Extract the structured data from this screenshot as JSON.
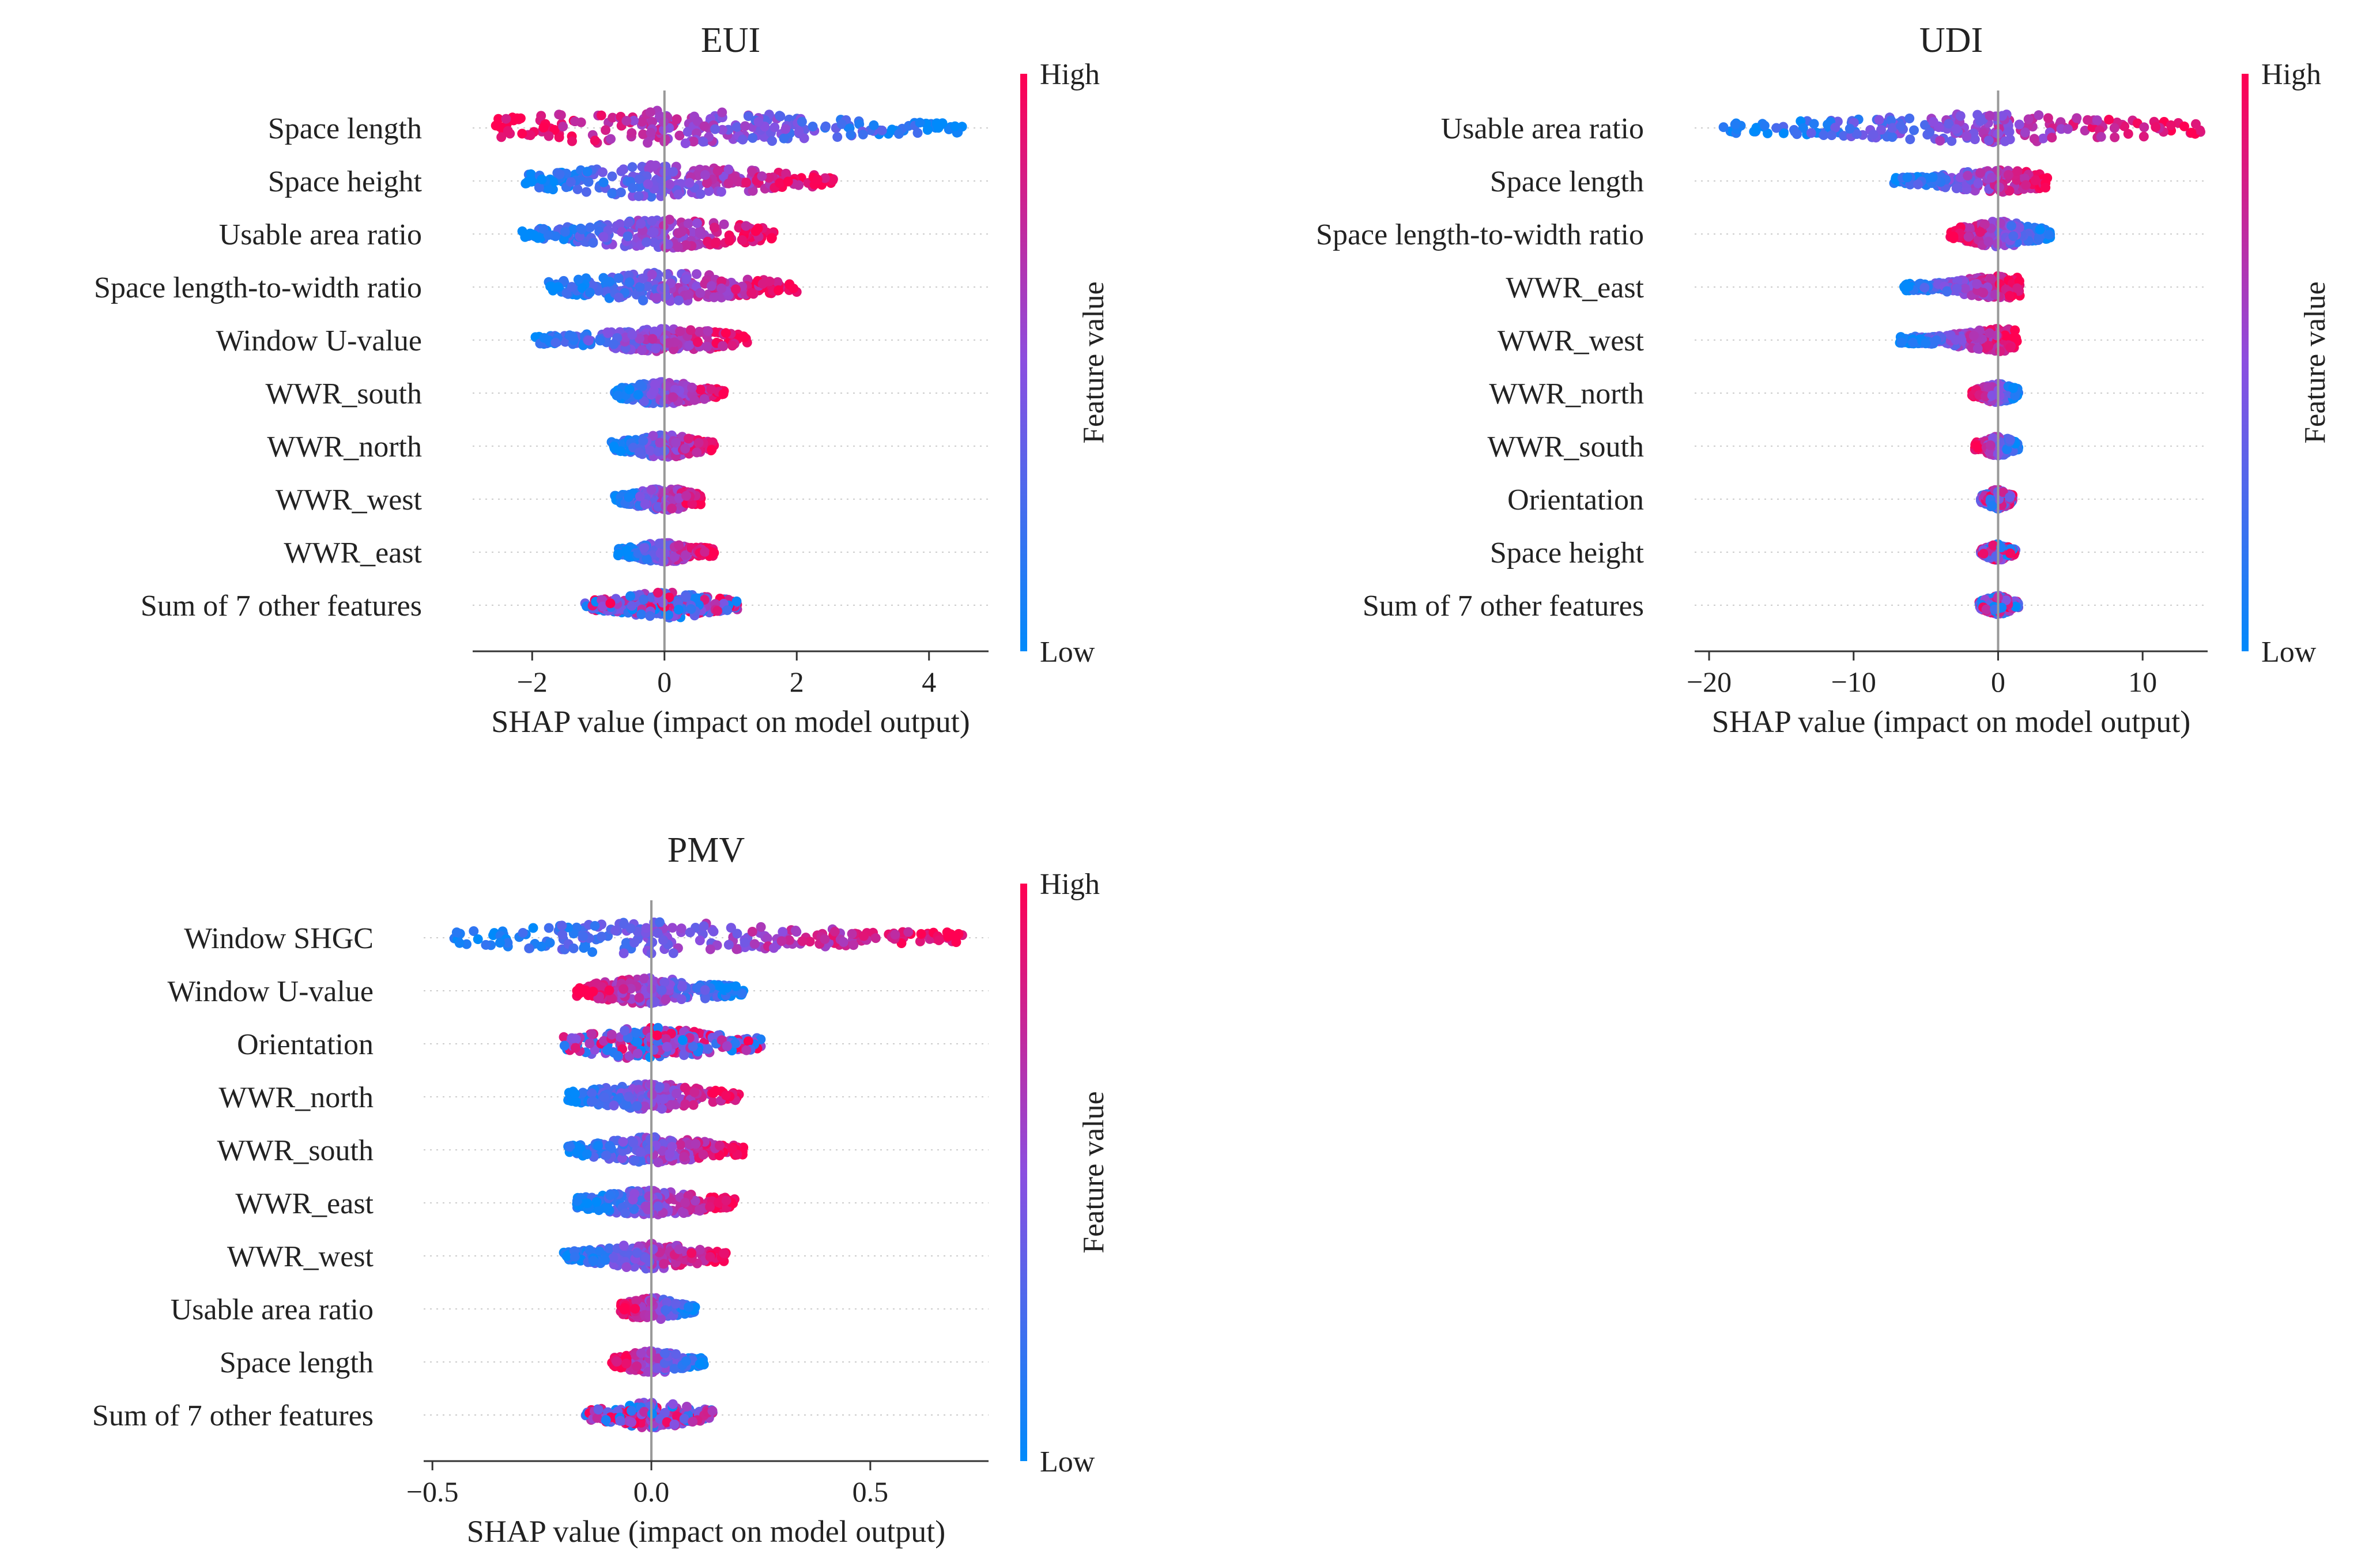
{
  "chart_data": [
    {
      "type": "scatter",
      "subtype": "shap-beeswarm",
      "title": "EUI",
      "xlabel": "SHAP value (impact on model output)",
      "ylabel": "",
      "xlim": [
        -2.9,
        4.9
      ],
      "xticks": [
        -2,
        0,
        2,
        4
      ],
      "xtick_labels": [
        "−2",
        "0",
        "2",
        "4"
      ],
      "colorbar": {
        "label": "Feature value",
        "high": "High",
        "low": "Low"
      },
      "features": [
        {
          "name": "Space length",
          "min": -2.55,
          "max": 4.5,
          "low_side": "right",
          "spread": 1.1
        },
        {
          "name": "Space height",
          "min": -2.1,
          "max": 2.55,
          "low_side": "left",
          "spread": 1.0
        },
        {
          "name": "Usable area ratio",
          "min": -2.15,
          "max": 1.65,
          "low_side": "left",
          "spread": 0.9
        },
        {
          "name": "Space length-to-width ratio",
          "min": -1.75,
          "max": 2.0,
          "low_side": "left",
          "spread": 0.9
        },
        {
          "name": "Window U-value",
          "min": -1.95,
          "max": 1.25,
          "low_side": "left",
          "spread": 0.7
        },
        {
          "name": "WWR_south",
          "min": -0.75,
          "max": 0.9,
          "low_side": "left",
          "spread": 0.7
        },
        {
          "name": "WWR_north",
          "min": -0.8,
          "max": 0.75,
          "low_side": "left",
          "spread": 0.7
        },
        {
          "name": "WWR_west",
          "min": -0.75,
          "max": 0.55,
          "low_side": "left",
          "spread": 0.7
        },
        {
          "name": "WWR_east",
          "min": -0.7,
          "max": 0.75,
          "low_side": "left",
          "spread": 0.6
        },
        {
          "name": "Sum of 7 other features",
          "min": -1.2,
          "max": 1.1,
          "low_side": "mixed",
          "spread": 0.8
        }
      ]
    },
    {
      "type": "scatter",
      "subtype": "shap-beeswarm",
      "title": "UDI",
      "xlabel": "SHAP value (impact on model output)",
      "ylabel": "",
      "xlim": [
        -21,
        14.5
      ],
      "xticks": [
        -20,
        -10,
        0,
        10
      ],
      "xtick_labels": [
        "−20",
        "−10",
        "0",
        "10"
      ],
      "colorbar": {
        "label": "Feature value",
        "high": "High",
        "low": "Low"
      },
      "features": [
        {
          "name": "Usable area ratio",
          "min": -19,
          "max": 14,
          "low_side": "left",
          "spread": 0.9
        },
        {
          "name": "Space length",
          "min": -7.2,
          "max": 3.4,
          "low_side": "left",
          "spread": 0.7
        },
        {
          "name": "Space length-to-width ratio",
          "min": -3.3,
          "max": 3.6,
          "low_side": "right",
          "spread": 0.8
        },
        {
          "name": "WWR_east",
          "min": -6.5,
          "max": 1.5,
          "low_side": "left",
          "spread": 0.7
        },
        {
          "name": "WWR_west",
          "min": -6.8,
          "max": 1.3,
          "low_side": "left",
          "spread": 0.7
        },
        {
          "name": "WWR_north",
          "min": -1.8,
          "max": 1.4,
          "low_side": "right",
          "spread": 0.6
        },
        {
          "name": "WWR_south",
          "min": -1.6,
          "max": 1.4,
          "low_side": "right",
          "spread": 0.6
        },
        {
          "name": "Orientation",
          "min": -1.2,
          "max": 1.0,
          "low_side": "mixed",
          "spread": 0.6
        },
        {
          "name": "Space height",
          "min": -1.2,
          "max": 1.2,
          "low_side": "mixed",
          "spread": 0.5
        },
        {
          "name": "Sum of 7 other features",
          "min": -1.3,
          "max": 1.4,
          "low_side": "mixed",
          "spread": 0.6
        }
      ]
    },
    {
      "type": "scatter",
      "subtype": "shap-beeswarm",
      "title": "PMV",
      "xlabel": "SHAP value (impact on model output)",
      "ylabel": "",
      "xlim": [
        -0.52,
        0.77
      ],
      "xticks": [
        -0.5,
        0.0,
        0.5
      ],
      "xtick_labels": [
        "−0.5",
        "0.0",
        "0.5"
      ],
      "colorbar": {
        "label": "Feature value",
        "high": "High",
        "low": "Low"
      },
      "features": [
        {
          "name": "Window SHGC",
          "min": -0.45,
          "max": 0.71,
          "low_side": "left",
          "spread": 1.0
        },
        {
          "name": "Window U-value",
          "min": -0.17,
          "max": 0.21,
          "low_side": "right",
          "spread": 0.8
        },
        {
          "name": "Orientation",
          "min": -0.2,
          "max": 0.25,
          "low_side": "mixed",
          "spread": 1.0
        },
        {
          "name": "WWR_north",
          "min": -0.19,
          "max": 0.2,
          "low_side": "left",
          "spread": 0.8
        },
        {
          "name": "WWR_south",
          "min": -0.19,
          "max": 0.21,
          "low_side": "left",
          "spread": 0.8
        },
        {
          "name": "WWR_east",
          "min": -0.17,
          "max": 0.19,
          "low_side": "left",
          "spread": 0.8
        },
        {
          "name": "WWR_west",
          "min": -0.2,
          "max": 0.17,
          "low_side": "left",
          "spread": 0.8
        },
        {
          "name": "Usable area ratio",
          "min": -0.07,
          "max": 0.1,
          "low_side": "right",
          "spread": 0.7
        },
        {
          "name": "Space length",
          "min": -0.09,
          "max": 0.12,
          "low_side": "right",
          "spread": 0.7
        },
        {
          "name": "Sum of 7 other features",
          "min": -0.15,
          "max": 0.14,
          "low_side": "mixed",
          "spread": 0.8
        }
      ]
    }
  ],
  "colors": {
    "low": "#008afb",
    "mid": "#8b4ee0",
    "high": "#ff0052",
    "axis": "#333333",
    "zero_line": "#999999",
    "row_guide": "#cccccc"
  }
}
